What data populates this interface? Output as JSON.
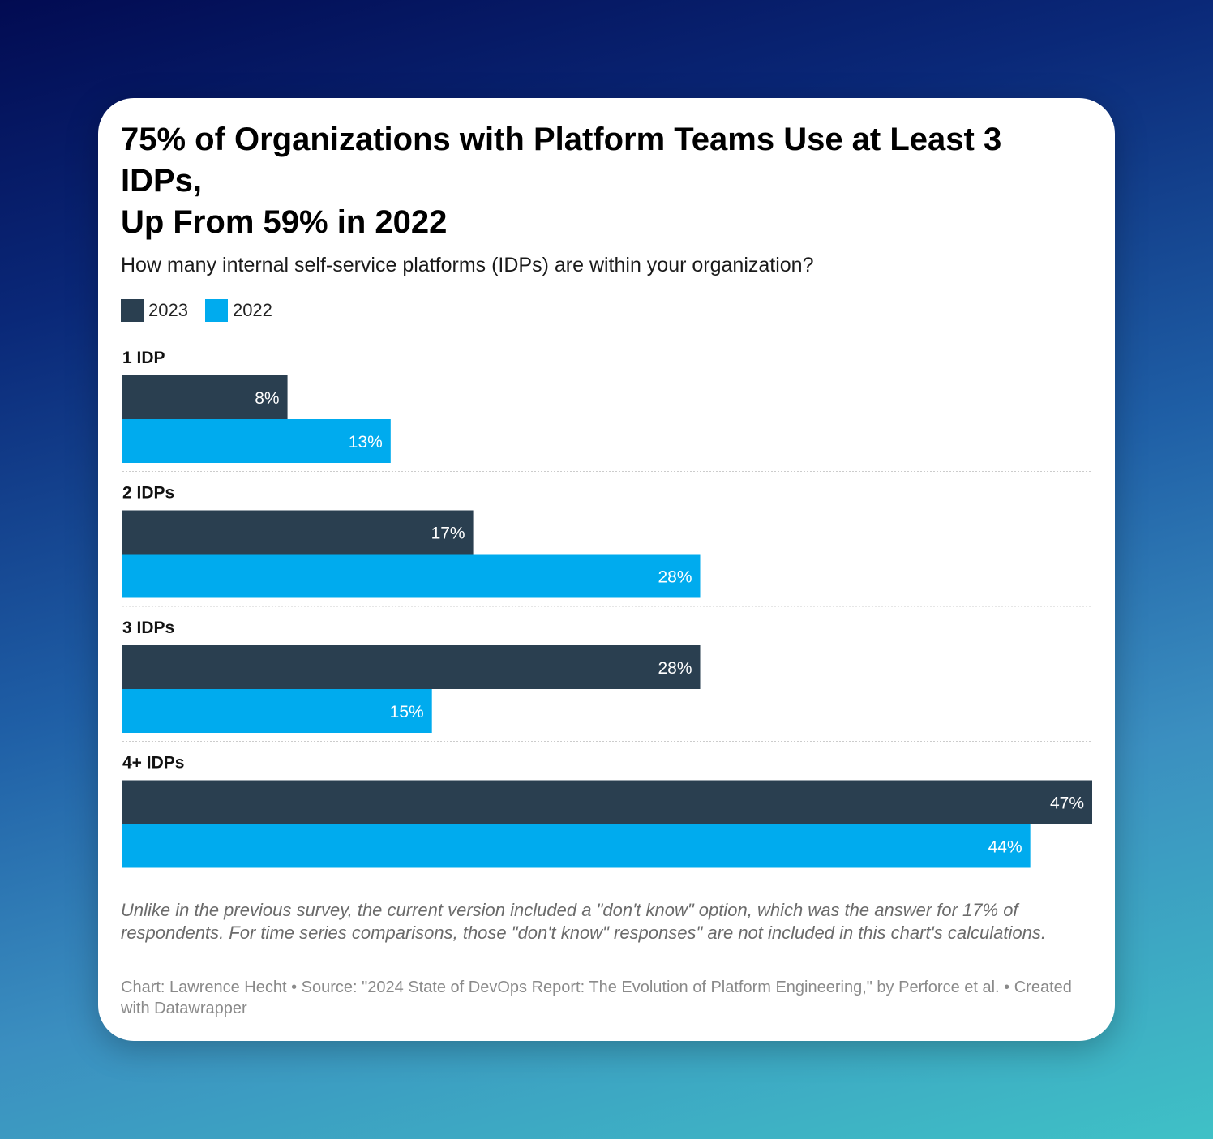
{
  "colors": {
    "y2023": "#2a3f50",
    "y2022": "#00abee",
    "divider": "#cccccc"
  },
  "chart_data": {
    "type": "bar",
    "orientation": "horizontal",
    "title": "75% of Organizations with Platform Teams Use at Least 3 IDPs,\nUp From 59% in 2022",
    "subtitle": "How many internal self-service platforms (IDPs) are within your organization?",
    "categories": [
      "1 IDP",
      "2 IDPs",
      "3 IDPs",
      "4+ IDPs"
    ],
    "series": [
      {
        "name": "2023",
        "values": [
          8,
          17,
          28,
          47
        ],
        "labels": [
          "8%",
          "17%",
          "28%",
          "47%"
        ]
      },
      {
        "name": "2022",
        "values": [
          13,
          28,
          15,
          44
        ],
        "labels": [
          "13%",
          "28%",
          "15%",
          "44%"
        ]
      }
    ],
    "xlim": [
      0,
      47
    ],
    "unit": "%",
    "grid": false,
    "legend_position": "top-left"
  },
  "note": "Unlike in the previous survey, the current version included a \"don't know\" option, which was the answer for 17% of respondents. For time series comparisons, those \"don't know\" responses\" are not included in this chart's calculations.",
  "credit": "Chart: Lawrence Hecht • Source: \"2024 State of DevOps Report: The Evolution of Platform Engineering,\" by Perforce et al. • Created with Datawrapper"
}
